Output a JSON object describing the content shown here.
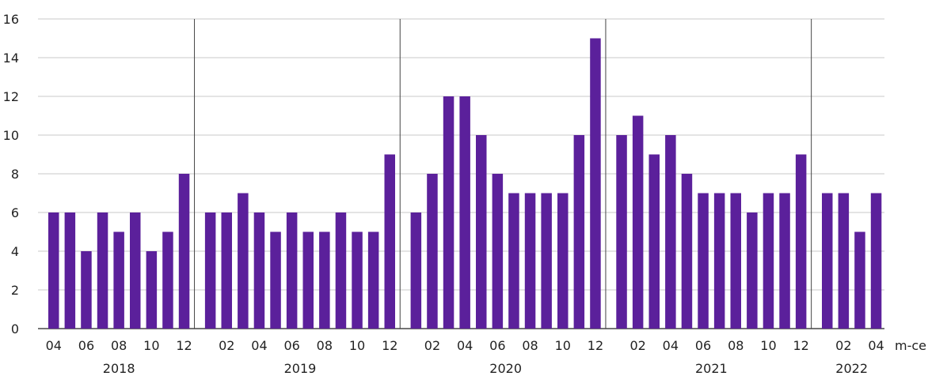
{
  "chart_data": {
    "type": "bar",
    "x_unit_label": "m-ce",
    "ylim": [
      0,
      16
    ],
    "y_ticks": [
      0,
      2,
      4,
      6,
      8,
      10,
      12,
      14,
      16
    ],
    "grid": true,
    "bar_color": "#5b209b",
    "years": [
      {
        "label": "2018",
        "months": [
          "04",
          "05",
          "06",
          "07",
          "08",
          "09",
          "10",
          "11",
          "12"
        ],
        "values": [
          6,
          6,
          4,
          6,
          5,
          6,
          4,
          5,
          8
        ]
      },
      {
        "label": "2019",
        "months": [
          "01",
          "02",
          "03",
          "04",
          "05",
          "06",
          "07",
          "08",
          "09",
          "10",
          "11",
          "12"
        ],
        "values": [
          6,
          6,
          7,
          6,
          5,
          6,
          5,
          5,
          6,
          5,
          5,
          9
        ]
      },
      {
        "label": "2020",
        "months": [
          "01",
          "02",
          "03",
          "04",
          "05",
          "06",
          "07",
          "08",
          "09",
          "10",
          "11",
          "12"
        ],
        "values": [
          6,
          8,
          12,
          12,
          10,
          8,
          7,
          7,
          7,
          7,
          10,
          15
        ]
      },
      {
        "label": "2021",
        "months": [
          "01",
          "02",
          "03",
          "04",
          "05",
          "06",
          "07",
          "08",
          "09",
          "10",
          "11",
          "12"
        ],
        "values": [
          10,
          11,
          9,
          10,
          8,
          7,
          7,
          7,
          6,
          7,
          7,
          9
        ]
      },
      {
        "label": "2022",
        "months": [
          "01",
          "02",
          "03",
          "04"
        ],
        "values": [
          7,
          7,
          5,
          7
        ]
      }
    ]
  }
}
